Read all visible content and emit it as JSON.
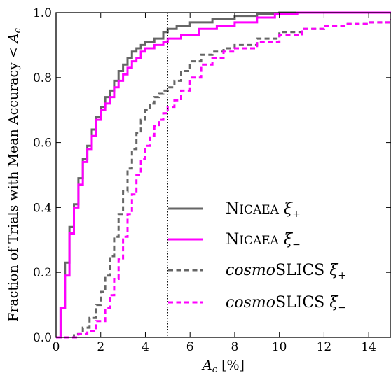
{
  "chart_data": {
    "type": "line",
    "xlabel": "A_c [%]",
    "ylabel": "Fraction of Trials with Mean Accuracy < A_c",
    "xlim": [
      0,
      15
    ],
    "ylim": [
      0,
      1
    ],
    "xticks": [
      0,
      2,
      4,
      6,
      8,
      10,
      12,
      14
    ],
    "yticks": [
      0.0,
      0.2,
      0.4,
      0.6,
      0.8,
      1.0
    ],
    "xtick_labels": [
      "0",
      "2",
      "4",
      "6",
      "8",
      "10",
      "12",
      "14"
    ],
    "ytick_labels": [
      "0.0",
      "0.2",
      "0.4",
      "0.6",
      "0.8",
      "1.0"
    ],
    "vline": 5,
    "legend_position": "center-right",
    "grid": false,
    "series": [
      {
        "name": "NICAEA ξ+",
        "color": "#666666",
        "style": "solid",
        "x": [
          0,
          0.2,
          0.4,
          0.6,
          0.8,
          1.0,
          1.2,
          1.4,
          1.6,
          1.8,
          2.0,
          2.2,
          2.4,
          2.6,
          2.8,
          3.0,
          3.2,
          3.4,
          3.6,
          3.8,
          4.0,
          4.4,
          4.8,
          5.0,
          5.4,
          6.0,
          7.0,
          8.0,
          9.0,
          10.0,
          15.0
        ],
        "y": [
          0,
          0.09,
          0.23,
          0.34,
          0.41,
          0.49,
          0.55,
          0.59,
          0.64,
          0.68,
          0.71,
          0.74,
          0.76,
          0.79,
          0.82,
          0.84,
          0.86,
          0.88,
          0.89,
          0.9,
          0.91,
          0.92,
          0.94,
          0.95,
          0.96,
          0.97,
          0.98,
          0.99,
          0.995,
          1.0,
          1.0
        ]
      },
      {
        "name": "NICAEA ξ−",
        "color": "#ff00ff",
        "style": "solid",
        "x": [
          0,
          0.2,
          0.4,
          0.6,
          0.8,
          1.0,
          1.2,
          1.4,
          1.6,
          1.8,
          2.0,
          2.2,
          2.4,
          2.6,
          2.8,
          3.0,
          3.2,
          3.4,
          3.6,
          3.8,
          4.0,
          4.4,
          4.8,
          5.0,
          5.6,
          6.4,
          7.2,
          8.0,
          9.0,
          9.8,
          10.8,
          15.0
        ],
        "y": [
          0,
          0.09,
          0.19,
          0.32,
          0.4,
          0.47,
          0.54,
          0.58,
          0.62,
          0.67,
          0.7,
          0.72,
          0.74,
          0.77,
          0.79,
          0.81,
          0.83,
          0.85,
          0.86,
          0.88,
          0.89,
          0.9,
          0.91,
          0.92,
          0.93,
          0.95,
          0.96,
          0.97,
          0.985,
          0.995,
          1.0,
          1.0
        ]
      },
      {
        "name": "cosmoSLICS ξ+",
        "color": "#666666",
        "style": "dashed",
        "x": [
          0,
          0.4,
          0.8,
          1.2,
          1.5,
          1.8,
          2.0,
          2.2,
          2.4,
          2.6,
          2.8,
          3.0,
          3.2,
          3.4,
          3.6,
          3.8,
          4.0,
          4.2,
          4.4,
          4.6,
          4.8,
          5.0,
          5.3,
          5.6,
          6.0,
          6.5,
          7.0,
          7.5,
          8.0,
          9.0,
          10.0,
          11.0,
          12.0,
          13.0,
          14.0,
          15.0
        ],
        "y": [
          0,
          0.0,
          0.01,
          0.03,
          0.06,
          0.1,
          0.14,
          0.19,
          0.25,
          0.31,
          0.38,
          0.45,
          0.52,
          0.58,
          0.63,
          0.67,
          0.7,
          0.72,
          0.74,
          0.75,
          0.76,
          0.77,
          0.79,
          0.82,
          0.85,
          0.87,
          0.88,
          0.89,
          0.9,
          0.92,
          0.94,
          0.95,
          0.96,
          0.965,
          0.97,
          0.975
        ]
      },
      {
        "name": "cosmoSLICS ξ−",
        "color": "#ff00ff",
        "style": "dashed",
        "x": [
          0,
          0.6,
          1.0,
          1.4,
          1.8,
          2.2,
          2.4,
          2.6,
          2.8,
          3.0,
          3.2,
          3.4,
          3.6,
          3.8,
          4.0,
          4.2,
          4.4,
          4.6,
          4.8,
          5.0,
          5.3,
          5.6,
          6.0,
          6.5,
          7.0,
          7.5,
          8.0,
          9.0,
          10.0,
          11.0,
          12.0,
          13.0,
          14.0,
          15.0
        ],
        "y": [
          0,
          0.0,
          0.01,
          0.02,
          0.05,
          0.09,
          0.13,
          0.18,
          0.24,
          0.31,
          0.38,
          0.44,
          0.5,
          0.55,
          0.59,
          0.62,
          0.65,
          0.67,
          0.69,
          0.71,
          0.73,
          0.76,
          0.8,
          0.84,
          0.86,
          0.88,
          0.89,
          0.91,
          0.93,
          0.95,
          0.96,
          0.965,
          0.97,
          0.98
        ]
      }
    ]
  },
  "legend": [
    {
      "prefix": "NICAEA",
      "prefix_italic": false,
      "rest": "",
      "sym": "ξ",
      "sub": "+"
    },
    {
      "prefix": "NICAEA",
      "prefix_italic": false,
      "rest": "",
      "sym": "ξ",
      "sub": "−"
    },
    {
      "prefix": "cosmo",
      "prefix_italic": true,
      "rest": "SLICS",
      "sym": "ξ",
      "sub": "+"
    },
    {
      "prefix": "cosmo",
      "prefix_italic": true,
      "rest": "SLICS",
      "sym": "ξ",
      "sub": "−"
    }
  ]
}
